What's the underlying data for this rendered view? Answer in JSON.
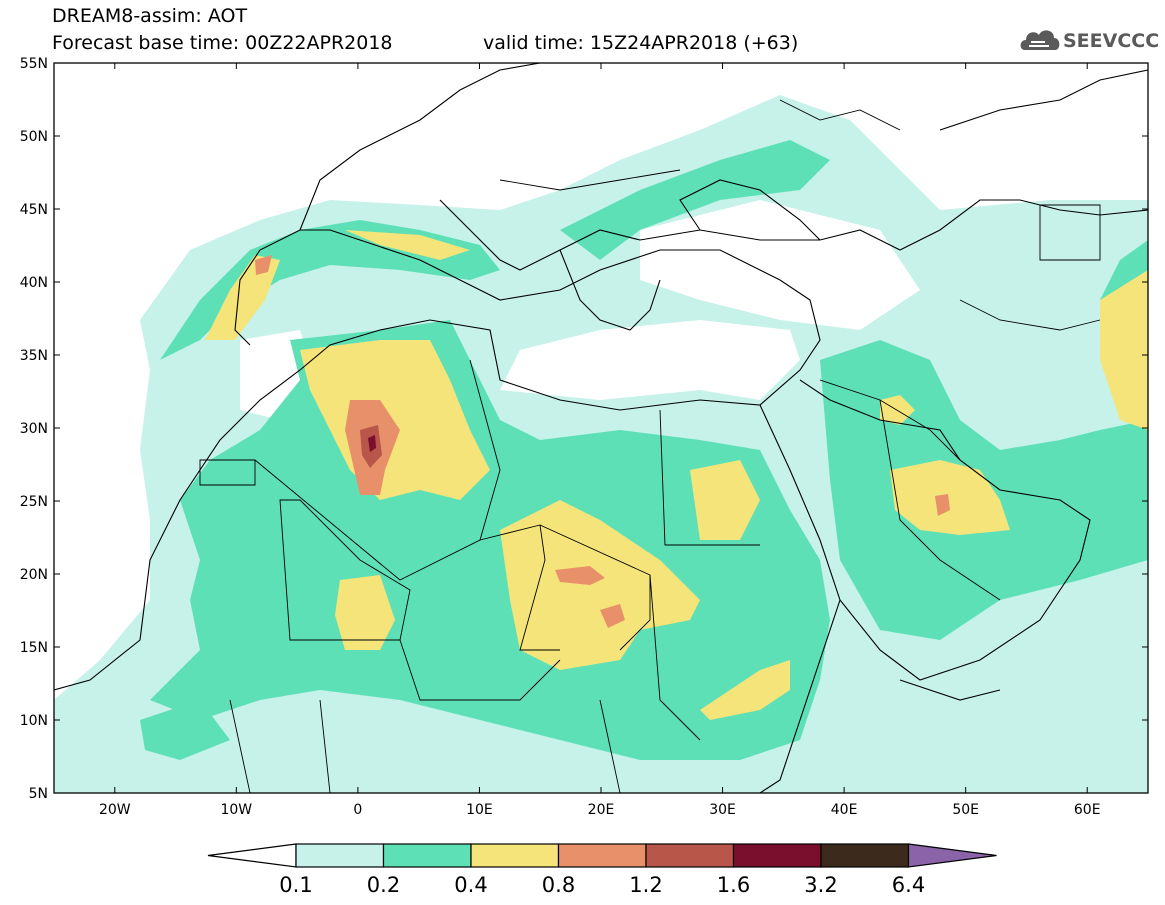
{
  "header": {
    "line1": "DREAM8-assim: AOT",
    "base_time": "Forecast base time: 00Z22APR2018",
    "valid_time": "valid time: 15Z24APR2018 (+63)"
  },
  "logo": {
    "text": "SEEVCCC",
    "icon": "cloud-icon"
  },
  "map": {
    "lon_range": [
      -25,
      65
    ],
    "lat_range": [
      5,
      55
    ],
    "lat_ticks": [
      "5N",
      "10N",
      "15N",
      "20N",
      "25N",
      "30N",
      "35N",
      "40N",
      "45N",
      "50N",
      "55N"
    ],
    "lon_ticks": [
      "20W",
      "10W",
      "0",
      "10E",
      "20E",
      "30E",
      "40E",
      "50E",
      "60E"
    ]
  },
  "colorbar": {
    "labels": [
      "0.1",
      "0.2",
      "0.4",
      "0.8",
      "1.2",
      "1.6",
      "3.2",
      "6.4"
    ],
    "colors": [
      "#ffffff",
      "#c6f2ea",
      "#5ee0b6",
      "#f5e47a",
      "#e8906a",
      "#b8564a",
      "#7a0f2d",
      "#3c2a1c",
      "#8b63a8"
    ]
  }
}
